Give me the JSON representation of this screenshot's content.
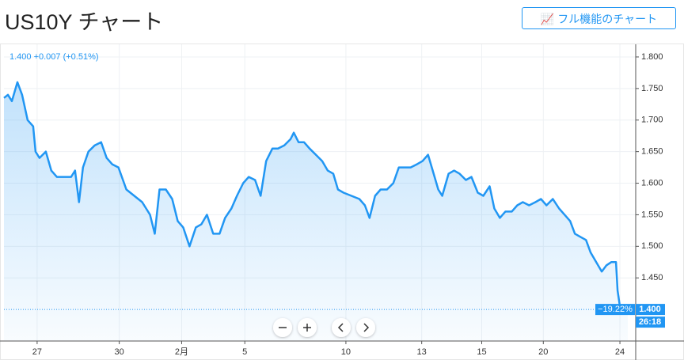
{
  "header": {
    "title": "US10Y チャート",
    "button": "フル機能のチャート"
  },
  "chart_data": {
    "type": "line",
    "legend_text": "1.400 +0.007 (+0.51%)",
    "series": [
      {
        "color": "#2196f3",
        "x": [
          0,
          5,
          10,
          17,
          23,
          30,
          37,
          40,
          45,
          53,
          60,
          67,
          75,
          85,
          90,
          95,
          100,
          107,
          115,
          123,
          130,
          137,
          145,
          155,
          165,
          175,
          185,
          191,
          197,
          205,
          213,
          220,
          227,
          235,
          243,
          250,
          257,
          265,
          273,
          280,
          288,
          295,
          303,
          310,
          318,
          325,
          332,
          340,
          347,
          355,
          363,
          367,
          373,
          380,
          387,
          395,
          403,
          410,
          417,
          423,
          430,
          440,
          450,
          457,
          463,
          470,
          477,
          485,
          493,
          500,
          507,
          515,
          523,
          530,
          537,
          543,
          550,
          555,
          563,
          570,
          577,
          585,
          592,
          600,
          607,
          615,
          621,
          628,
          635,
          643,
          650,
          657,
          665,
          673,
          680,
          687,
          695,
          703,
          710,
          717,
          723,
          730,
          737,
          743,
          750,
          757,
          763,
          769,
          775,
          777,
          780,
          785,
          790
        ],
        "values": [
          1.735,
          1.74,
          1.73,
          1.76,
          1.74,
          1.7,
          1.69,
          1.65,
          1.64,
          1.65,
          1.62,
          1.61,
          1.61,
          1.61,
          1.62,
          1.57,
          1.625,
          1.65,
          1.66,
          1.665,
          1.64,
          1.63,
          1.625,
          1.59,
          1.58,
          1.57,
          1.55,
          1.52,
          1.59,
          1.59,
          1.575,
          1.54,
          1.53,
          1.5,
          1.53,
          1.535,
          1.55,
          1.52,
          1.52,
          1.545,
          1.56,
          1.58,
          1.6,
          1.61,
          1.605,
          1.58,
          1.635,
          1.655,
          1.655,
          1.66,
          1.67,
          1.68,
          1.665,
          1.665,
          1.655,
          1.645,
          1.635,
          1.62,
          1.615,
          1.59,
          1.585,
          1.58,
          1.575,
          1.565,
          1.545,
          1.58,
          1.59,
          1.59,
          1.6,
          1.625,
          1.625,
          1.625,
          1.63,
          1.635,
          1.645,
          1.62,
          1.59,
          1.58,
          1.615,
          1.62,
          1.615,
          1.605,
          1.61,
          1.585,
          1.58,
          1.595,
          1.56,
          1.545,
          1.555,
          1.555,
          1.565,
          1.57,
          1.565,
          1.57,
          1.575,
          1.565,
          1.575,
          1.56,
          1.55,
          1.54,
          1.52,
          1.515,
          1.51,
          1.49,
          1.475,
          1.46,
          1.47,
          1.475,
          1.475,
          1.43,
          1.405,
          1.395,
          1.4
        ]
      }
    ],
    "xlim": [
      0,
      800
    ],
    "xticks": [
      {
        "value": 42,
        "label": "27"
      },
      {
        "value": 146,
        "label": "30"
      },
      {
        "value": 225,
        "label": "2月"
      },
      {
        "value": 305,
        "label": "5"
      },
      {
        "value": 433,
        "label": "10"
      },
      {
        "value": 529,
        "label": "13"
      },
      {
        "value": 605,
        "label": "15"
      },
      {
        "value": 683,
        "label": "20"
      },
      {
        "value": 780,
        "label": "24"
      }
    ],
    "ylim": [
      1.35,
      1.815
    ],
    "yticks": [
      {
        "value": 1.45,
        "label": "1.450"
      },
      {
        "value": 1.5,
        "label": "1.500"
      },
      {
        "value": 1.55,
        "label": "1.550"
      },
      {
        "value": 1.6,
        "label": "1.600"
      },
      {
        "value": 1.65,
        "label": "1.650"
      },
      {
        "value": 1.7,
        "label": "1.700"
      },
      {
        "value": 1.75,
        "label": "1.750"
      },
      {
        "value": 1.8,
        "label": "1.800"
      }
    ],
    "last_value": {
      "value": 1.4,
      "label": "1.400"
    },
    "change_label": "−19.22%",
    "countdown": "26:18",
    "grid": true
  }
}
